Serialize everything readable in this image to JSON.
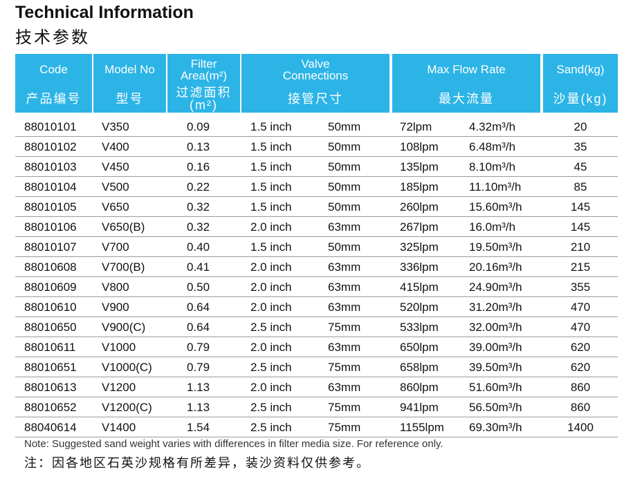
{
  "header": {
    "title": "Technical Information",
    "subtitle": "技术参数"
  },
  "table": {
    "columns": [
      {
        "en": [
          "Code"
        ],
        "zh": [
          "产品编号"
        ]
      },
      {
        "en": [
          "Model No"
        ],
        "zh": [
          "型号"
        ]
      },
      {
        "en": [
          "Filter",
          "Area(m²)"
        ],
        "zh": [
          "过滤面积",
          "(m²)"
        ]
      },
      {
        "en": [
          "Valve",
          "Connections"
        ],
        "zh": [
          "接管尺寸"
        ]
      },
      {
        "en": [
          "Max Flow Rate"
        ],
        "zh": [
          "最大流量"
        ]
      },
      {
        "en": [
          "Sand(kg)"
        ],
        "zh": [
          "沙量(kg)"
        ]
      }
    ],
    "rows": [
      [
        "88010101",
        "V350",
        "0.09",
        "1.5 inch",
        "50mm",
        "72lpm",
        "4.32m³/h",
        "20"
      ],
      [
        "88010102",
        "V400",
        "0.13",
        "1.5 inch",
        "50mm",
        "108lpm",
        "6.48m³/h",
        "35"
      ],
      [
        "88010103",
        "V450",
        "0.16",
        "1.5 inch",
        "50mm",
        "135lpm",
        "8.10m³/h",
        "45"
      ],
      [
        "88010104",
        "V500",
        "0.22",
        "1.5 inch",
        "50mm",
        "185lpm",
        "11.10m³/h",
        "85"
      ],
      [
        "88010105",
        "V650",
        "0.32",
        "1.5 inch",
        "50mm",
        "260lpm",
        "15.60m³/h",
        "145"
      ],
      [
        "88010106",
        "V650(B)",
        "0.32",
        "2.0 inch",
        "63mm",
        "267lpm",
        "16.0m³/h",
        "145"
      ],
      [
        "88010107",
        "V700",
        "0.40",
        "1.5 inch",
        "50mm",
        "325lpm",
        "19.50m³/h",
        "210"
      ],
      [
        "88010608",
        "V700(B)",
        "0.41",
        "2.0 inch",
        "63mm",
        "336lpm",
        "20.16m³/h",
        "215"
      ],
      [
        "88010609",
        "V800",
        "0.50",
        "2.0 inch",
        "63mm",
        "415lpm",
        "24.90m³/h",
        "355"
      ],
      [
        "88010610",
        "V900",
        "0.64",
        "2.0 inch",
        "63mm",
        "520lpm",
        "31.20m³/h",
        "470"
      ],
      [
        "88010650",
        "V900(C)",
        "0.64",
        "2.5 inch",
        "75mm",
        "533lpm",
        "32.00m³/h",
        "470"
      ],
      [
        "88010611",
        "V1000",
        "0.79",
        "2.0 inch",
        "63mm",
        "650lpm",
        "39.00m³/h",
        "620"
      ],
      [
        "88010651",
        "V1000(C)",
        "0.79",
        "2.5 inch",
        "75mm",
        "658lpm",
        "39.50m³/h",
        "620"
      ],
      [
        "88010613",
        "V1200",
        "1.13",
        "2.0 inch",
        "63mm",
        "860lpm",
        "51.60m³/h",
        "860"
      ],
      [
        "88010652",
        "V1200(C)",
        "1.13",
        "2.5 inch",
        "75mm",
        "941lpm",
        "56.50m³/h",
        "860"
      ],
      [
        "88040614",
        "V1400",
        "1.54",
        "2.5 inch",
        "75mm",
        "1155lpm",
        "69.30m³/h",
        "1400"
      ]
    ]
  },
  "notes": {
    "en": "Note: Suggested sand weight varies with differences in filter media size. For reference only.",
    "zh": "注：因各地区石英沙规格有所差异，装沙资料仅供参考。"
  }
}
